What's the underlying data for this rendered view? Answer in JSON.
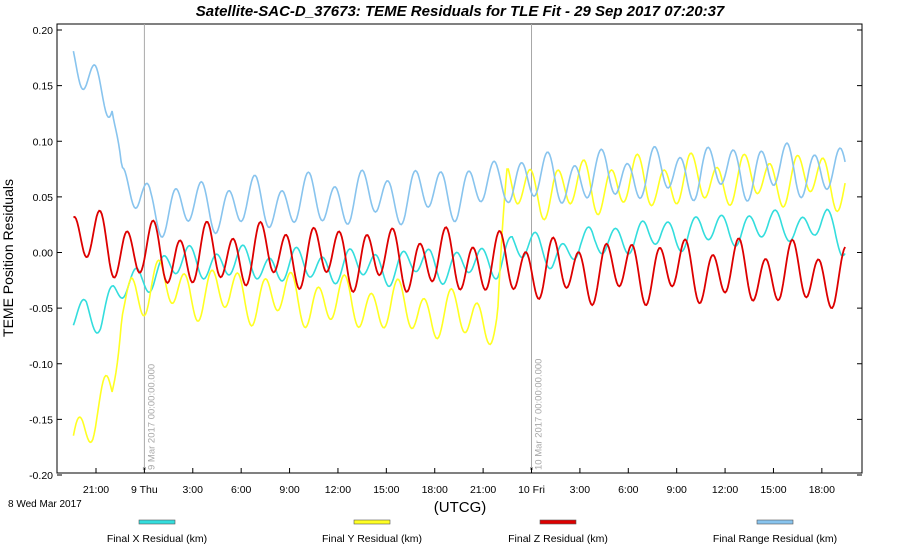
{
  "chart_data": {
    "type": "line",
    "title": "Satellite-SAC-D_37673:  TEME Residuals for TLE Fit - 29 Sep 2017 07:20:37",
    "xlabel": "(UTCG)",
    "ylabel": "TEME Position Residuals",
    "date_label": "8 Wed  Mar 2017",
    "x_unit": "hours since 8 Mar 2017 00:00 UTCG",
    "xlim": [
      19.5,
      67.8
    ],
    "ylim": [
      -0.2,
      0.2
    ],
    "y_ticks": [
      -0.2,
      -0.15,
      -0.1,
      -0.05,
      0.0,
      0.05,
      0.1,
      0.15,
      0.2
    ],
    "y_tick_labels": [
      "-0.20",
      "-0.15",
      "-0.10",
      "-0.05",
      "0.00",
      "0.05",
      "0.10",
      "0.15",
      "0.20"
    ],
    "x_ticks": [
      {
        "h": 21,
        "label": "21:00"
      },
      {
        "h": 24,
        "label": "9 Thu"
      },
      {
        "h": 27,
        "label": "3:00"
      },
      {
        "h": 30,
        "label": "6:00"
      },
      {
        "h": 33,
        "label": "9:00"
      },
      {
        "h": 36,
        "label": "12:00"
      },
      {
        "h": 39,
        "label": "15:00"
      },
      {
        "h": 42,
        "label": "18:00"
      },
      {
        "h": 45,
        "label": "21:00"
      },
      {
        "h": 48,
        "label": "10 Fri"
      },
      {
        "h": 51,
        "label": "3:00"
      },
      {
        "h": 54,
        "label": "6:00"
      },
      {
        "h": 57,
        "label": "9:00"
      },
      {
        "h": 60,
        "label": "12:00"
      },
      {
        "h": 63,
        "label": "15:00"
      },
      {
        "h": 66,
        "label": "18:00"
      }
    ],
    "vertical_markers": [
      {
        "h": 24,
        "label": "9 Mar 2017 00:00:00.000"
      },
      {
        "h": 48,
        "label": "10 Mar 2017 00:00:00.000"
      }
    ],
    "grid": false,
    "legend_position": "bottom",
    "series": [
      {
        "name": "Final X Residual (km)",
        "color": "#33dddd",
        "x": [
          19.6,
          20.4,
          21.3,
          22.1,
          23.0,
          23.8,
          24.7,
          25.5,
          26.4,
          27.2,
          28.1,
          28.9,
          29.8,
          30.6,
          31.5,
          32.3,
          33.2,
          34.0,
          34.9,
          35.7,
          36.6,
          37.4,
          38.3,
          39.1,
          40.0,
          40.8,
          41.7,
          42.5,
          43.4,
          44.2,
          45.1,
          45.9,
          46.8,
          47.6,
          48.5,
          49.3,
          50.2,
          51.0,
          51.9,
          52.7,
          53.6,
          54.4,
          55.3,
          56.1,
          57.0,
          57.8,
          58.7,
          59.5,
          60.4,
          61.2,
          62.1,
          62.9,
          63.8,
          64.6,
          65.5,
          66.3,
          67.2
        ],
        "y": [
          -0.06,
          -0.05,
          -0.058,
          -0.04,
          -0.03,
          -0.025,
          -0.015,
          -0.012,
          -0.01,
          -0.008,
          -0.009,
          -0.01,
          -0.01,
          -0.01,
          -0.012,
          -0.013,
          -0.012,
          -0.012,
          -0.012,
          -0.013,
          -0.012,
          -0.012,
          -0.012,
          -0.014,
          -0.012,
          -0.01,
          -0.01,
          -0.012,
          -0.01,
          -0.01,
          -0.012,
          -0.008,
          0.008,
          0.005,
          0.0,
          -0.002,
          0.002,
          0.01,
          0.004,
          0.012,
          0.015,
          0.013,
          0.013,
          0.018,
          0.016,
          0.02,
          0.018,
          0.02,
          0.022,
          0.023,
          0.022,
          0.022,
          0.026,
          0.023,
          0.026,
          0.023,
          0.01
        ]
      },
      {
        "name": "Final Y Residual (km)",
        "color": "#ffff22",
        "x": [
          19.6,
          20.2,
          20.8,
          21.4,
          22.0,
          22.6,
          23.2,
          23.8,
          24.4,
          25.3,
          26.2,
          27.1,
          28.0,
          28.9,
          29.8,
          30.7,
          31.6,
          32.5,
          33.4,
          34.3,
          35.2,
          36.1,
          37.0,
          37.9,
          38.8,
          39.7,
          40.6,
          41.5,
          42.4,
          43.3,
          44.2,
          45.1,
          45.9,
          46.5,
          47.1,
          47.8,
          48.6,
          49.5,
          50.4,
          51.3,
          52.2,
          53.1,
          54.0,
          54.9,
          55.8,
          56.7,
          57.6,
          58.5,
          59.4,
          60.3,
          61.2,
          62.1,
          63.0,
          63.9,
          64.8,
          65.7,
          66.6,
          67.3
        ],
        "y": [
          -0.165,
          -0.155,
          -0.15,
          -0.14,
          -0.13,
          -0.045,
          -0.035,
          -0.035,
          -0.03,
          -0.032,
          -0.034,
          -0.036,
          -0.036,
          -0.038,
          -0.038,
          -0.04,
          -0.04,
          -0.04,
          -0.042,
          -0.044,
          -0.044,
          -0.046,
          -0.046,
          -0.048,
          -0.048,
          -0.05,
          -0.052,
          -0.054,
          -0.054,
          -0.058,
          -0.06,
          -0.062,
          -0.05,
          0.06,
          0.055,
          0.055,
          0.055,
          0.058,
          0.056,
          0.06,
          0.058,
          0.062,
          0.06,
          0.064,
          0.062,
          0.064,
          0.062,
          0.066,
          0.064,
          0.066,
          0.064,
          0.066,
          0.064,
          0.068,
          0.066,
          0.066,
          0.064,
          0.062
        ]
      },
      {
        "name": "Final Z Residual (km)",
        "color": "#dd0000",
        "x": [
          19.6,
          20.5,
          21.4,
          22.3,
          23.2,
          24.1,
          25.0,
          25.9,
          26.8,
          27.7,
          28.6,
          29.5,
          30.4,
          31.3,
          32.2,
          33.1,
          34.0,
          34.9,
          35.8,
          36.7,
          37.6,
          38.5,
          39.4,
          40.3,
          41.2,
          42.1,
          43.0,
          43.9,
          44.8,
          45.7,
          46.6,
          47.5,
          48.4,
          49.3,
          50.2,
          51.1,
          52.0,
          52.9,
          53.8,
          54.7,
          55.6,
          56.5,
          57.4,
          58.3,
          59.2,
          60.1,
          61.0,
          61.9,
          62.8,
          63.7,
          64.6,
          65.5,
          66.4,
          67.3
        ],
        "y": [
          0.012,
          0.01,
          0.01,
          0.006,
          0.002,
          -0.002,
          -0.002,
          -0.002,
          -0.004,
          -0.004,
          -0.002,
          -0.002,
          -0.002,
          -0.002,
          -0.002,
          -0.002,
          -0.002,
          -0.004,
          -0.004,
          -0.004,
          -0.004,
          -0.006,
          -0.006,
          -0.006,
          -0.008,
          -0.008,
          -0.008,
          -0.008,
          -0.01,
          -0.012,
          -0.012,
          -0.014,
          -0.014,
          -0.016,
          -0.016,
          -0.018,
          -0.016,
          -0.018,
          -0.016,
          -0.016,
          -0.016,
          -0.016,
          -0.016,
          -0.016,
          -0.018,
          -0.018,
          -0.018,
          -0.018,
          -0.02,
          -0.02,
          -0.02,
          -0.02,
          -0.022,
          -0.024
        ]
      },
      {
        "name": "Final Range Residual (km)",
        "color": "#88c4ee",
        "x": [
          19.6,
          20.2,
          20.8,
          21.4,
          22.0,
          22.6,
          23.2,
          23.8,
          24.4,
          25.3,
          26.2,
          27.1,
          28.0,
          28.9,
          29.8,
          30.7,
          31.6,
          32.5,
          33.4,
          34.3,
          35.2,
          36.1,
          37.0,
          37.9,
          38.8,
          39.7,
          40.6,
          41.5,
          42.4,
          43.3,
          44.2,
          45.1,
          45.9,
          46.5,
          47.1,
          47.8,
          48.6,
          49.5,
          50.4,
          51.3,
          52.2,
          53.1,
          54.0,
          54.9,
          55.8,
          56.7,
          57.6,
          58.5,
          59.4,
          60.3,
          61.2,
          62.1,
          63.0,
          63.9,
          64.8,
          65.7,
          66.6,
          67.3
        ],
        "y": [
          0.165,
          0.16,
          0.155,
          0.15,
          0.145,
          0.055,
          0.052,
          0.05,
          0.04,
          0.04,
          0.04,
          0.04,
          0.042,
          0.042,
          0.042,
          0.044,
          0.044,
          0.044,
          0.046,
          0.046,
          0.046,
          0.048,
          0.048,
          0.05,
          0.05,
          0.05,
          0.052,
          0.052,
          0.054,
          0.054,
          0.056,
          0.058,
          0.06,
          0.07,
          0.068,
          0.066,
          0.064,
          0.066,
          0.066,
          0.068,
          0.066,
          0.07,
          0.068,
          0.072,
          0.07,
          0.072,
          0.07,
          0.074,
          0.072,
          0.074,
          0.072,
          0.074,
          0.072,
          0.076,
          0.074,
          0.074,
          0.07,
          0.068
        ]
      }
    ]
  }
}
